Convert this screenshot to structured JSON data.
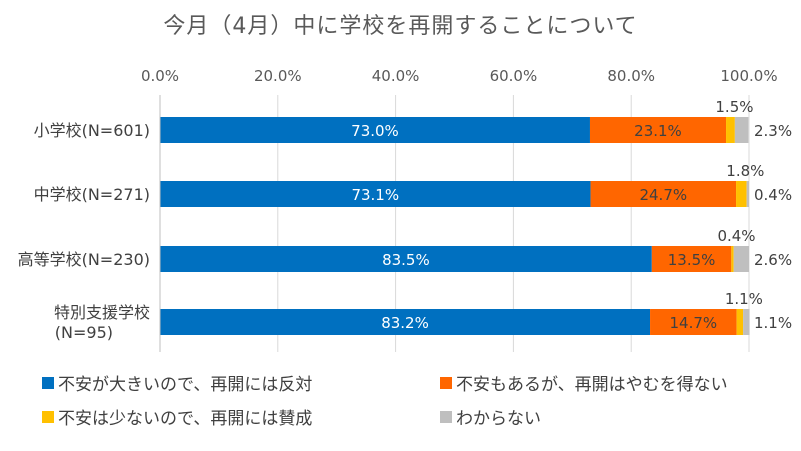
{
  "chart_data": {
    "type": "bar",
    "orientation": "horizontal",
    "stacked": true,
    "title": "今月（4月）中に学校を再開することについて",
    "categories": [
      "小学校(N=601)",
      "中学校(N=271)",
      "高等学校(N=230)",
      "特別支援学校\n(N=95)"
    ],
    "x_ticks": [
      "0.0%",
      "20.0%",
      "40.0%",
      "60.0%",
      "80.0%",
      "100.0%"
    ],
    "xlim": [
      0,
      100
    ],
    "x_axis_position": "top",
    "grid": true,
    "legend_position": "bottom",
    "series": [
      {
        "name": "不安が大きいので、再開には反対",
        "color": "#0070C0",
        "values": [
          73.0,
          73.1,
          83.5,
          83.2
        ],
        "labels": [
          "73.0%",
          "73.1%",
          "83.5%",
          "83.2%"
        ]
      },
      {
        "name": "不安もあるが、再開はやむを得ない",
        "color": "#FF6600",
        "values": [
          23.1,
          24.7,
          13.5,
          14.7
        ],
        "labels": [
          "23.1%",
          "24.7%",
          "13.5%",
          "14.7%"
        ]
      },
      {
        "name": "不安は少ないので、再開には賛成",
        "color": "#FFC000",
        "values": [
          1.5,
          1.8,
          0.4,
          1.1
        ],
        "labels": [
          "1.5%",
          "1.8%",
          "0.4%",
          "1.1%"
        ]
      },
      {
        "name": "わからない",
        "color": "#BFBFBF",
        "values": [
          2.3,
          0.4,
          2.6,
          1.1
        ],
        "labels": [
          "2.3%",
          "0.4%",
          "2.6%",
          "1.1%"
        ]
      }
    ]
  }
}
